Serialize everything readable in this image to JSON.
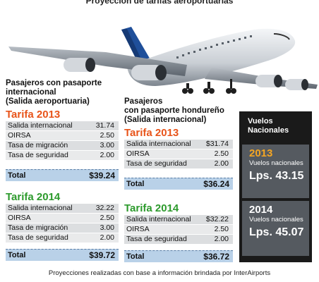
{
  "title": "Proyección de tarifas aeroportuarias",
  "international": {
    "heading": [
      "Pasajeros con pasaporte",
      "internacional",
      "(Salida aeroportuaria)"
    ],
    "t2013": {
      "label": "Tarifa 2013",
      "rows": [
        {
          "label": "Salida internacional",
          "value": "31.74"
        },
        {
          "label": "OIRSA",
          "value": "2.50"
        },
        {
          "label": "Tasa de migración",
          "value": "3.00"
        },
        {
          "label": "Tasa de seguridad",
          "value": "2.00"
        }
      ],
      "total_label": "Total",
      "total_value": "$39.24"
    },
    "t2014": {
      "label": "Tarifa  2014",
      "rows": [
        {
          "label": "Salida internacional",
          "value": "32.22"
        },
        {
          "label": "OIRSA",
          "value": "2.50"
        },
        {
          "label": "Tasa de migración",
          "value": "3.00"
        },
        {
          "label": "Tasa de seguridad",
          "value": "2.00"
        }
      ],
      "total_label": "Total",
      "total_value": "$39.72"
    }
  },
  "honduran": {
    "heading": [
      "Pasajeros",
      "con pasaporte hondureño",
      "(Salida internacional)"
    ],
    "t2013": {
      "label": "Tarifa 2013",
      "rows": [
        {
          "label": "Salida internacional",
          "value": "$31.74"
        },
        {
          "label": "OIRSA",
          "value": "2.50"
        },
        {
          "label": "Tasa de seguridad",
          "value": "2.00"
        }
      ],
      "total_label": "Total",
      "total_value": "$36.24"
    },
    "t2014": {
      "label": "Tarifa  2014",
      "rows": [
        {
          "label": "Salida internacional",
          "value": "$32.22"
        },
        {
          "label": "OIRSA",
          "value": "2.50"
        },
        {
          "label": "Tasa de seguridad",
          "value": "2.00"
        }
      ],
      "total_label": "Total",
      "total_value": "$36.72"
    }
  },
  "vuelos": {
    "heading": [
      "Vuelos",
      "Nacionales"
    ],
    "y2013": {
      "year": "2013",
      "sub": "Vuelos nacionales",
      "price": "Lps. 43.15"
    },
    "y2014": {
      "year": "2014",
      "sub": "Vuelos nacionales",
      "price": "Lps. 45.07"
    }
  },
  "footer": "Proyecciones realizadas con base a información brindada por InterAirports",
  "colors": {
    "tarifa_2013": "#e8541a",
    "tarifa_2014": "#2c9a2c",
    "total_bar": "#b9d1e8"
  }
}
